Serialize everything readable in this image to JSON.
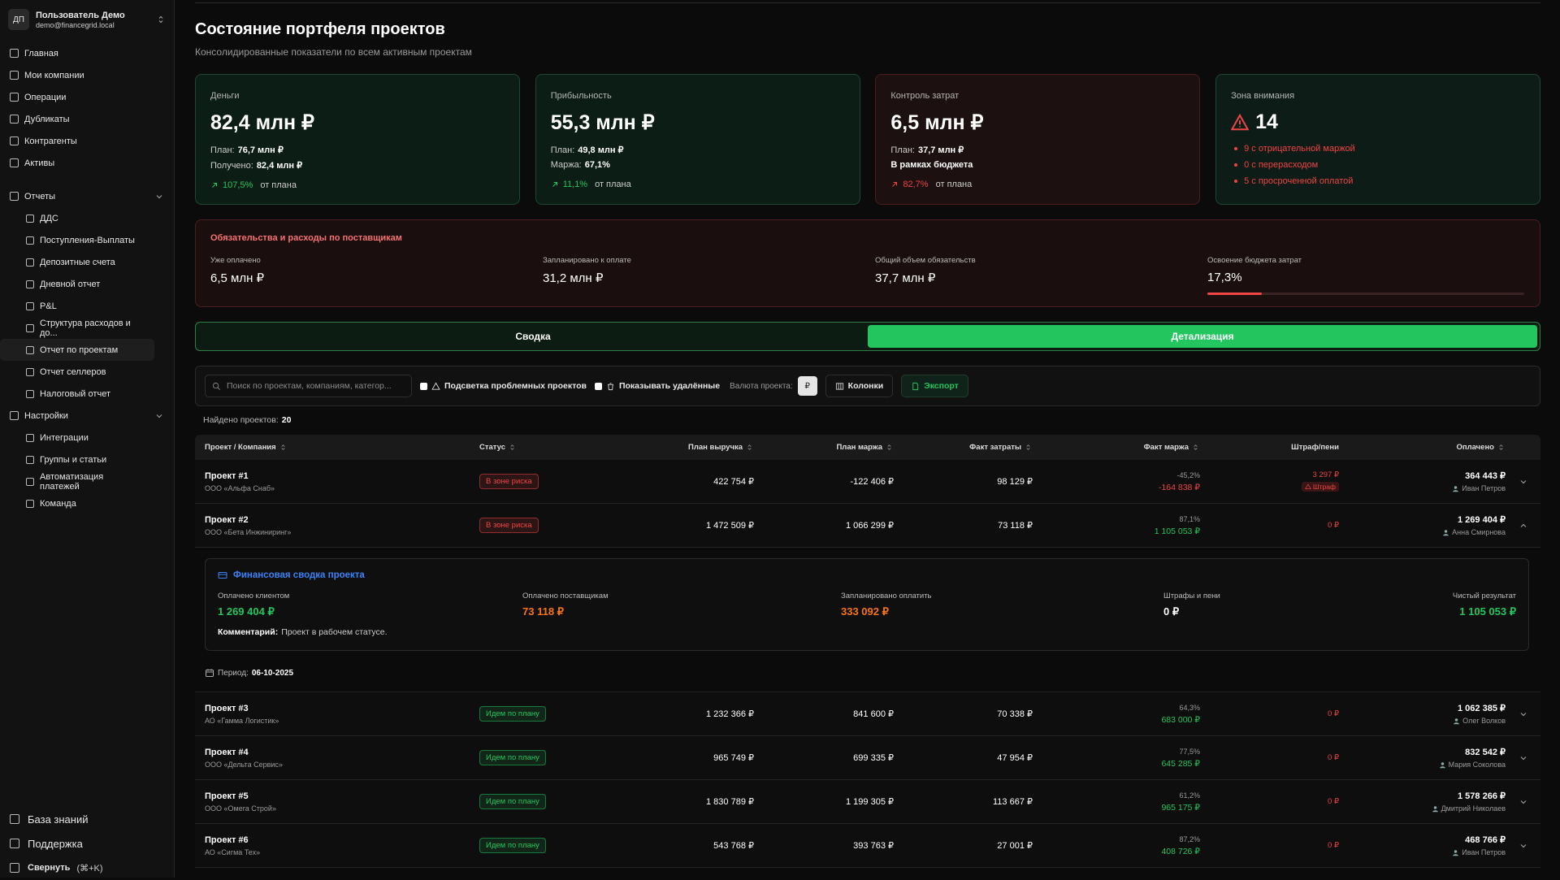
{
  "sidebar": {
    "user": {
      "initials": "ДП",
      "name": "Пользователь Демо",
      "email": "demo@financegrid.local"
    },
    "nav": [
      "Главная",
      "Мои компании",
      "Операции",
      "Дубликаты",
      "Контрагенты",
      "Активы"
    ],
    "reports": {
      "title": "Отчеты",
      "items": [
        "ДДС",
        "Поступления-Выплаты",
        "Депозитные счета",
        "Дневной отчет",
        "P&L",
        "Структура расходов и до...",
        "Отчет по проектам",
        "Отчет селлеров",
        "Налоговый отчет"
      ],
      "selected": 6
    },
    "settings": {
      "title": "Настройки",
      "items": [
        "Интеграции",
        "Группы и статьи",
        "Автоматизация платежей",
        "Команда"
      ]
    },
    "footer": {
      "knowledge": "База знаний",
      "support": "Поддержка",
      "collapse": "Свернуть",
      "shortcut": "(⌘+K)"
    }
  },
  "header": {
    "title": "Состояние портфеля проектов",
    "subtitle": "Консолидированные показатели по всем активным проектам"
  },
  "cards": [
    {
      "label": "Деньги",
      "value": "82,4 млн ₽",
      "lines": [
        {
          "label": "План:",
          "value": "76,7 млн ₽"
        },
        {
          "label": "Получено:",
          "value": "82,4 млн ₽"
        }
      ],
      "delta": "107,5%",
      "delta_suffix": "от плана",
      "delta_color": "#22c55e",
      "bg": "#0c1d15",
      "border": "#1f4631"
    },
    {
      "label": "Прибыльность",
      "value": "55,3 млн ₽",
      "lines": [
        {
          "label": "План:",
          "value": "49,8 млн ₽"
        },
        {
          "label": "Маржа:",
          "value": "67,1%"
        }
      ],
      "delta": "11,1%",
      "delta_suffix": "от плана",
      "delta_color": "#22c55e",
      "bg": "#0c1d15",
      "border": "#1f4631"
    },
    {
      "label": "Контроль затрат",
      "value": "6,5 млн ₽",
      "lines": [
        {
          "label": "План:",
          "value": "37,7 млн ₽"
        },
        {
          "value": "В рамках бюджета"
        }
      ],
      "delta": "82,7%",
      "delta_suffix": "от плана",
      "delta_color": "#ef4444",
      "bg": "#1c1010",
      "border": "#4a1d1d"
    },
    {
      "label": "Зона внимания",
      "value": "14",
      "bullets": [
        "9 с отрицательной маржой",
        "0 с перерасходом",
        "5 с просроченной оплатой"
      ],
      "bg": "#0d1c16",
      "border": "#1f4631"
    }
  ],
  "obligations": {
    "title": "Обязательства и расходы по поставщикам",
    "metrics": [
      {
        "label": "Уже оплачено",
        "value": "6,5 млн ₽"
      },
      {
        "label": "Запланировано к оплате",
        "value": "31,2 млн ₽"
      },
      {
        "label": "Общий объем обязательств",
        "value": "37,7 млн ₽"
      },
      {
        "label": "Освоение бюджета затрат",
        "value": "17,3%",
        "progress": 17.3
      }
    ]
  },
  "tabs": {
    "items": [
      "Сводка",
      "Детализация"
    ],
    "active": 1
  },
  "toolbar": {
    "search": "Поиск по проектам, компаниям, категор...",
    "highlight": "Подсветка проблемных проектов",
    "deleted": "Показывать удалённые",
    "currency_label": "Валюта проекта:",
    "currency": "₽",
    "columns": "Колонки",
    "export": "Экспорт"
  },
  "found": {
    "label": "Найдено проектов:",
    "count": "20"
  },
  "table": {
    "headers": [
      "Проект / Компания",
      "Статус",
      "План выручка",
      "План маржа",
      "Факт затраты",
      "Факт маржа",
      "Штраф/пени",
      "Оплачено"
    ],
    "rows": [
      {
        "project": "Проект #1",
        "company": "ООО «Альфа Снаб»",
        "status": "В зоне риска",
        "status_color": "#ef4444",
        "plan_revenue": "422 754 ₽",
        "plan_margin": "-122 406 ₽",
        "fact_costs": "98 129 ₽",
        "margin_pct": "-45,2%",
        "margin_value": "-164 838 ₽",
        "penalty": "3 297 ₽",
        "penalty_tag": "Штраф",
        "paid": "364 443 ₽",
        "manager": "Иван Петров"
      },
      {
        "project": "Проект #2",
        "company": "ООО «Бета Инжиниринг»",
        "status": "В зоне риска",
        "status_color": "#ef4444",
        "plan_revenue": "1 472 509 ₽",
        "plan_margin": "1 066 299 ₽",
        "fact_costs": "73 118 ₽",
        "margin_pct": "87,1%",
        "margin_value": "1 105 053 ₽",
        "penalty": "0 ₽",
        "paid": "1 269 404 ₽",
        "manager": "Анна Смирнова",
        "detail": {
          "title": "Финансовая сводка проекта",
          "items": [
            {
              "label": "Оплачено клиентом",
              "value": "1 269 404 ₽",
              "color": "#22c55e"
            },
            {
              "label": "Оплачено поставщикам",
              "value": "73 118 ₽",
              "color": "#f97316"
            },
            {
              "label": "Запланировано оплатить",
              "value": "333 092 ₽",
              "color": "#f97316"
            },
            {
              "label": "Штрафы и пени",
              "value": "0 ₽",
              "color": "#ffffff"
            },
            {
              "label": "Чистый результат",
              "value": "1 105 053 ₽",
              "color": "#22c55e"
            }
          ],
          "comment_label": "Комментарий:",
          "comment": "Проект в рабочем статусе.",
          "period_label": "Период:",
          "period": "06-10-2025"
        }
      },
      {
        "project": "Проект #3",
        "company": "АО «Гамма Логистик»",
        "status": "Идем по плану",
        "status_color": "#22c55e",
        "plan_revenue": "1 232 366 ₽",
        "plan_margin": "841 600 ₽",
        "fact_costs": "70 338 ₽",
        "margin_pct": "64,3%",
        "margin_value": "683 000 ₽",
        "penalty": "0 ₽",
        "paid": "1 062 385 ₽",
        "manager": "Олег Волков"
      },
      {
        "project": "Проект #4",
        "company": "ООО «Дельта Сервис»",
        "status": "Идем по плану",
        "status_color": "#22c55e",
        "plan_revenue": "965 749 ₽",
        "plan_margin": "699 335 ₽",
        "fact_costs": "47 954 ₽",
        "margin_pct": "77,5%",
        "margin_value": "645 285 ₽",
        "penalty": "0 ₽",
        "paid": "832 542 ₽",
        "manager": "Мария Соколова"
      },
      {
        "project": "Проект #5",
        "company": "ООО «Омега Строй»",
        "status": "Идем по плану",
        "status_color": "#22c55e",
        "plan_revenue": "1 830 789 ₽",
        "plan_margin": "1 199 305 ₽",
        "fact_costs": "113 667 ₽",
        "margin_pct": "61,2%",
        "margin_value": "965 175 ₽",
        "penalty": "0 ₽",
        "paid": "1 578 266 ₽",
        "manager": "Дмитрий Николаев"
      },
      {
        "project": "Проект #6",
        "company": "АО «Сигма Тех»",
        "status": "Идем по плану",
        "status_color": "#22c55e",
        "plan_revenue": "543 768 ₽",
        "plan_margin": "393 763 ₽",
        "fact_costs": "27 001 ₽",
        "margin_pct": "87,2%",
        "margin_value": "408 726 ₽",
        "penalty": "0 ₽",
        "paid": "468 766 ₽",
        "manager": "Иван Петров"
      }
    ]
  }
}
